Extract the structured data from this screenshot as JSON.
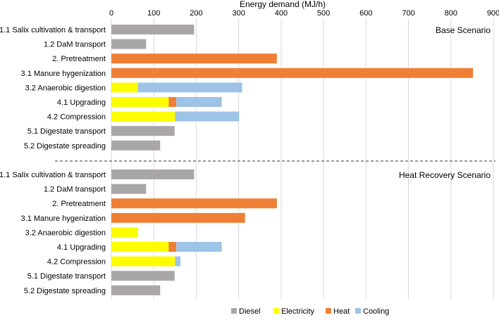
{
  "chart_data": {
    "type": "bar",
    "orientation": "horizontal",
    "stacked": true,
    "title": "",
    "xlabel": "Energy demand (MJ/h)",
    "ylabel": "",
    "xlim": [
      0,
      900
    ],
    "x_ticks": [
      "0",
      "100",
      "200",
      "300",
      "400",
      "500",
      "600",
      "700",
      "800",
      "900"
    ],
    "grid": true,
    "legend_position": "bottom",
    "colors": {
      "Diesel": "#a9a6a6",
      "Electricity": "#fdfd00",
      "Heat": "#ef7f35",
      "Cooling": "#9dc3e6"
    },
    "panels": [
      {
        "name": "Base Scenario",
        "categories": [
          "1.1 Salix cultivation & transport",
          "1.2 DaM transport",
          "2. Pretreatment",
          "3.1 Manure hygenization",
          "3.2 Anaerobic digestion",
          "4.1 Upgrading",
          "4.2 Compression",
          "5.1 Digestate transport",
          "5.2 Digestate spreading"
        ],
        "series": [
          {
            "name": "Diesel",
            "values": [
              195,
              82,
              0,
              0,
              0,
              0,
              0,
              149,
              115
            ]
          },
          {
            "name": "Electricity",
            "values": [
              0,
              0,
              0,
              0,
              63,
              135,
              150,
              0,
              0
            ]
          },
          {
            "name": "Heat",
            "values": [
              0,
              0,
              390,
              852,
              0,
              18,
              0,
              0,
              0
            ]
          },
          {
            "name": "Cooling",
            "values": [
              0,
              0,
              0,
              0,
              245,
              107,
              151,
              0,
              0
            ]
          }
        ]
      },
      {
        "name": "Heat Recovery Scenario",
        "categories": [
          "1.1 Salix cultivation & transport",
          "1.2 DaM transport",
          "2. Pretreatment",
          "3.1 Manure hygenization",
          "3.2 Anaerobic digestion",
          "4.1 Upgrading",
          "4.2 Compression",
          "5.1 Digestate transport",
          "5.2 Digestate spreading"
        ],
        "series": [
          {
            "name": "Diesel",
            "values": [
              195,
              82,
              0,
              0,
              0,
              0,
              0,
              149,
              115
            ]
          },
          {
            "name": "Electricity",
            "values": [
              0,
              0,
              0,
              0,
              63,
              135,
              150,
              0,
              0
            ]
          },
          {
            "name": "Heat",
            "values": [
              0,
              0,
              390,
              315,
              0,
              18,
              0,
              0,
              0
            ]
          },
          {
            "name": "Cooling",
            "values": [
              0,
              0,
              0,
              0,
              0,
              107,
              13,
              0,
              0
            ]
          }
        ]
      }
    ],
    "legend": [
      "Diesel",
      "Electricity",
      "Heat",
      "Cooling"
    ]
  }
}
